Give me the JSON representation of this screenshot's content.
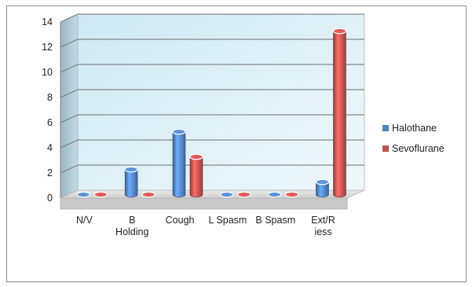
{
  "chart_data": {
    "type": "bar",
    "categories": [
      "N/V",
      "B Holding",
      "Cough",
      "L Spasm",
      "B Spasm",
      "Ext/R iess"
    ],
    "category_label_lines": [
      [
        "N/V"
      ],
      [
        "B",
        "Holding"
      ],
      [
        "Cough"
      ],
      [
        "L Spasm"
      ],
      [
        "B Spasm"
      ],
      [
        "Ext/R",
        "iess"
      ]
    ],
    "series": [
      {
        "name": "Halothane",
        "values": [
          0,
          2,
          5,
          0,
          0,
          1
        ],
        "color": "#4f81bd"
      },
      {
        "name": "Sevoflurane",
        "values": [
          0,
          0,
          3,
          0,
          0,
          13
        ],
        "color": "#c0504d"
      }
    ],
    "ylim": [
      0,
      14
    ],
    "yticks": [
      0,
      2,
      4,
      6,
      8,
      10,
      12,
      14
    ],
    "grid": true,
    "legend_position": "right",
    "title": "",
    "xlabel": "",
    "ylabel": "",
    "style": "3d-cylinder"
  }
}
